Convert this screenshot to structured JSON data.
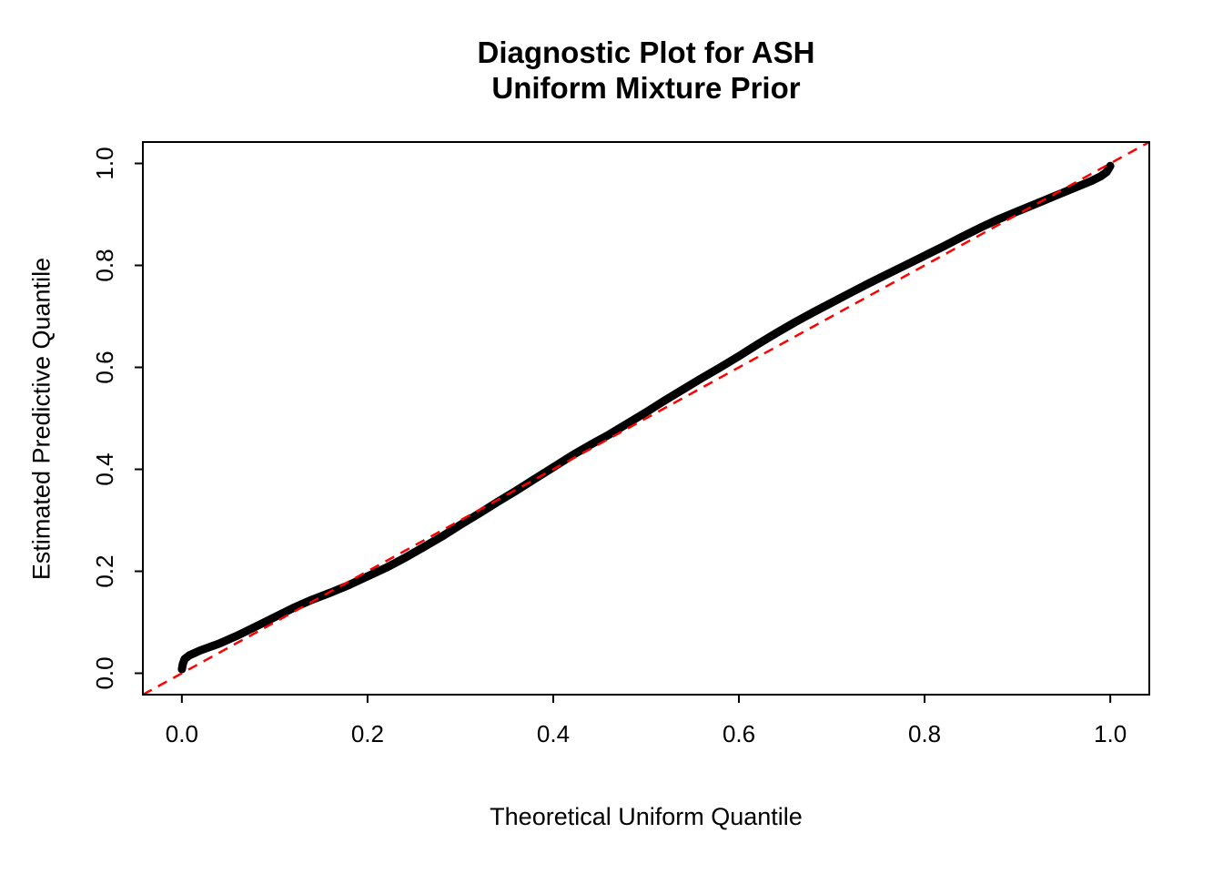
{
  "figure": {
    "title_line1": "Diagnostic Plot for ASH",
    "title_line2": "Uniform Mixture Prior",
    "xlabel": "Theoretical Uniform Quantile",
    "ylabel": "Estimated Predictive Quantile"
  },
  "colors": {
    "curve": "#000000",
    "reference_line": "#FF0000",
    "axis": "#000000",
    "background": "#FFFFFF"
  },
  "chart_data": {
    "type": "line",
    "subtype": "qq-plot-uniform-diagnostic",
    "title": "Diagnostic Plot for ASH\nUniform Mixture Prior",
    "xlabel": "Theoretical Uniform Quantile",
    "ylabel": "Estimated Predictive Quantile",
    "xlim": [
      -0.042,
      1.042
    ],
    "ylim": [
      -0.042,
      1.042
    ],
    "grid": false,
    "legend": null,
    "xticks": {
      "values": [
        0.0,
        0.2,
        0.4,
        0.6,
        0.8,
        1.0
      ],
      "labels": [
        "0.0",
        "0.2",
        "0.4",
        "0.6",
        "0.8",
        "1.0"
      ]
    },
    "yticks": {
      "values": [
        0.0,
        0.2,
        0.4,
        0.6,
        0.8,
        1.0
      ],
      "labels": [
        "0.0",
        "0.2",
        "0.4",
        "0.6",
        "0.8",
        "1.0"
      ]
    },
    "series": [
      {
        "name": "estimated_predictive_quantiles",
        "type": "line",
        "style": "solid",
        "color": "#000000",
        "linewidth": 9,
        "points": [
          [
            0.0,
            0.008
          ],
          [
            0.001,
            0.018
          ],
          [
            0.003,
            0.028
          ],
          [
            0.008,
            0.035
          ],
          [
            0.02,
            0.045
          ],
          [
            0.04,
            0.058
          ],
          [
            0.06,
            0.074
          ],
          [
            0.08,
            0.092
          ],
          [
            0.1,
            0.11
          ],
          [
            0.12,
            0.128
          ],
          [
            0.14,
            0.144
          ],
          [
            0.16,
            0.158
          ],
          [
            0.18,
            0.173
          ],
          [
            0.2,
            0.19
          ],
          [
            0.22,
            0.207
          ],
          [
            0.24,
            0.226
          ],
          [
            0.26,
            0.247
          ],
          [
            0.28,
            0.268
          ],
          [
            0.3,
            0.291
          ],
          [
            0.32,
            0.313
          ],
          [
            0.34,
            0.336
          ],
          [
            0.36,
            0.358
          ],
          [
            0.38,
            0.381
          ],
          [
            0.4,
            0.404
          ],
          [
            0.42,
            0.427
          ],
          [
            0.44,
            0.448
          ],
          [
            0.46,
            0.468
          ],
          [
            0.48,
            0.49
          ],
          [
            0.5,
            0.512
          ],
          [
            0.52,
            0.535
          ],
          [
            0.54,
            0.557
          ],
          [
            0.56,
            0.579
          ],
          [
            0.58,
            0.6
          ],
          [
            0.6,
            0.622
          ],
          [
            0.62,
            0.645
          ],
          [
            0.64,
            0.667
          ],
          [
            0.66,
            0.688
          ],
          [
            0.68,
            0.708
          ],
          [
            0.7,
            0.727
          ],
          [
            0.72,
            0.746
          ],
          [
            0.74,
            0.765
          ],
          [
            0.76,
            0.783
          ],
          [
            0.78,
            0.801
          ],
          [
            0.8,
            0.819
          ],
          [
            0.82,
            0.837
          ],
          [
            0.84,
            0.856
          ],
          [
            0.86,
            0.874
          ],
          [
            0.88,
            0.891
          ],
          [
            0.9,
            0.906
          ],
          [
            0.92,
            0.921
          ],
          [
            0.94,
            0.936
          ],
          [
            0.96,
            0.951
          ],
          [
            0.98,
            0.966
          ],
          [
            0.99,
            0.975
          ],
          [
            0.996,
            0.983
          ],
          [
            1.0,
            0.995
          ]
        ]
      },
      {
        "name": "identity_reference_line",
        "type": "line",
        "style": "dashed",
        "color": "#FF0000",
        "linewidth": 2.5,
        "points": [
          [
            -0.042,
            -0.042
          ],
          [
            1.042,
            1.042
          ]
        ]
      }
    ]
  }
}
